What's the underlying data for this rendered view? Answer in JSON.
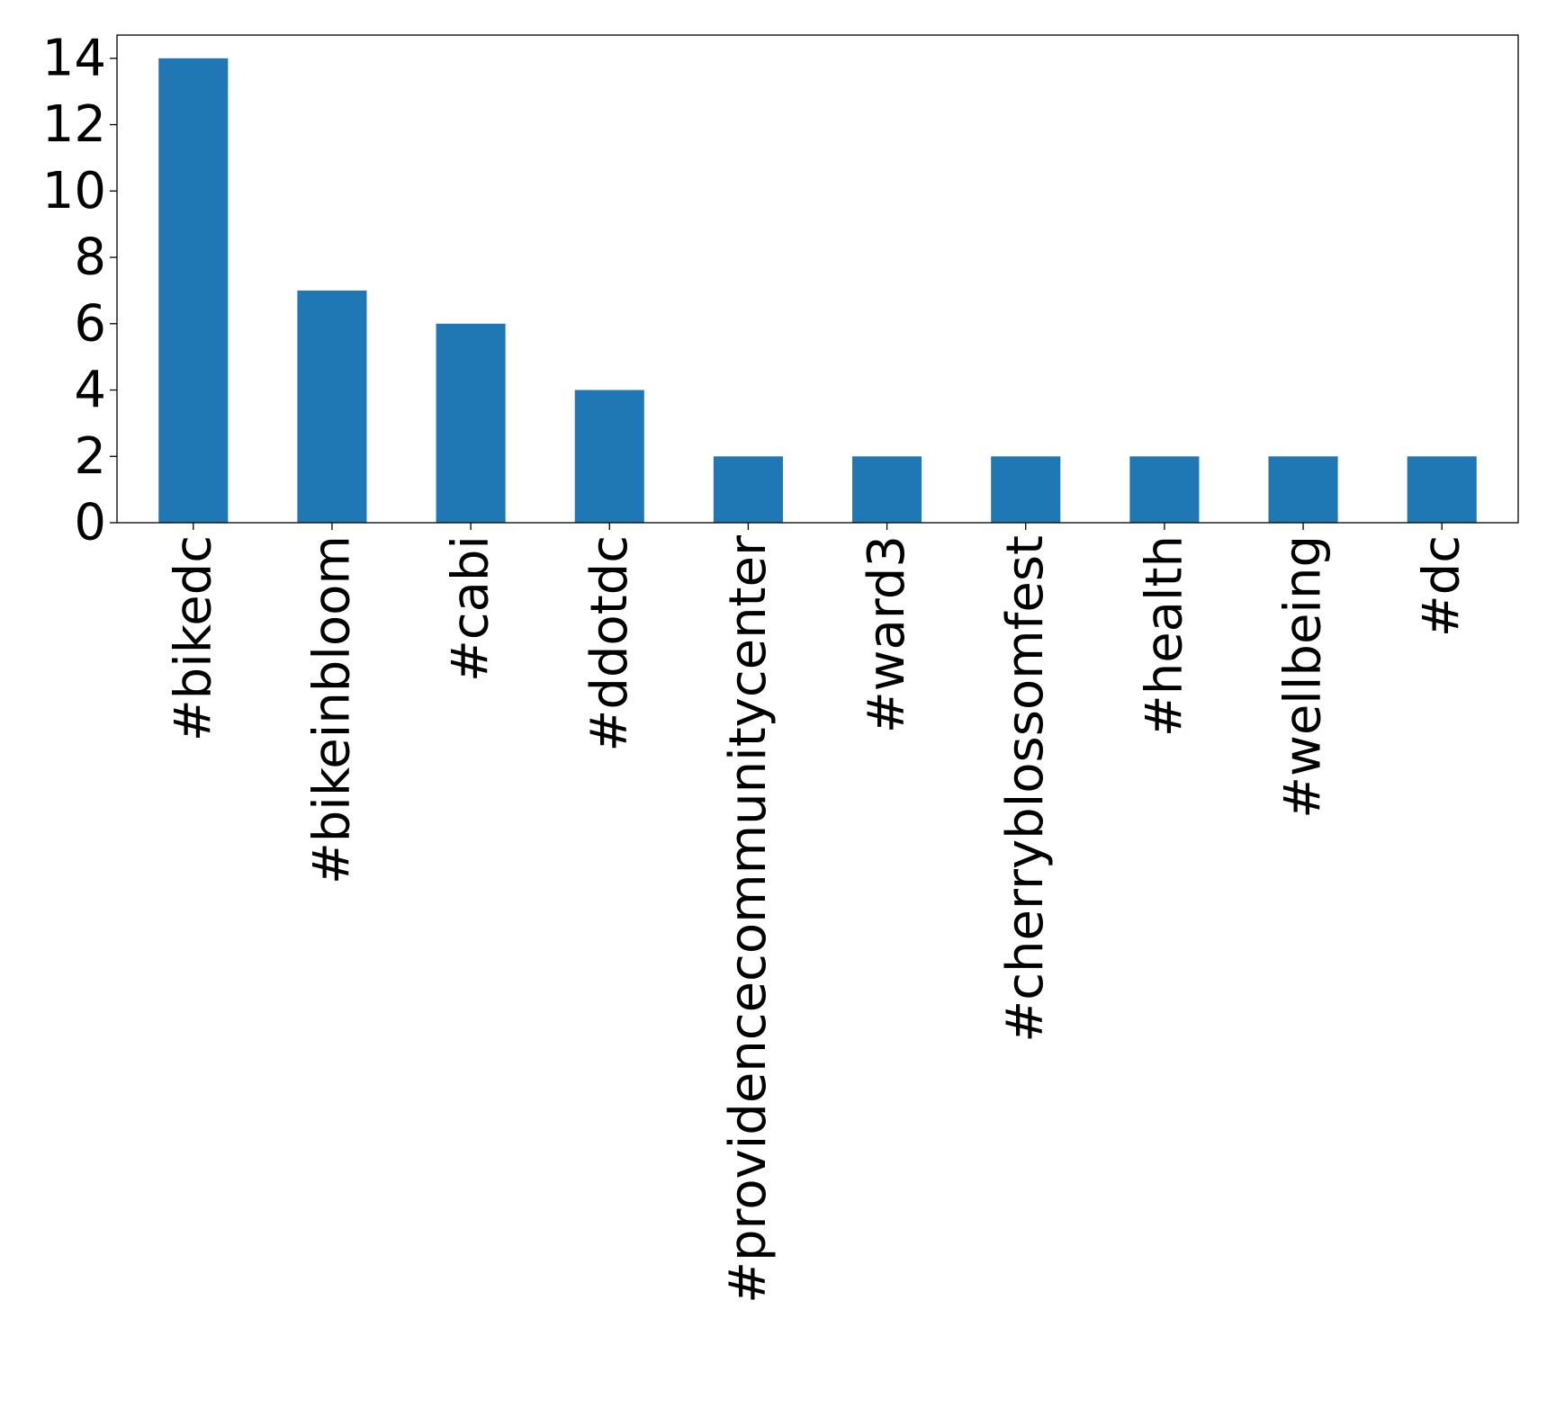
{
  "chart_data": {
    "type": "bar",
    "title": "",
    "xlabel": "",
    "ylabel": "",
    "categories": [
      "#bikedc",
      "#bikeinbloom",
      "#cabi",
      "#ddotdc",
      "#providencecommunitycenter",
      "#ward3",
      "#cherryblossomfest",
      "#health",
      "#wellbeing",
      "#dc"
    ],
    "values": [
      14,
      7,
      6,
      4,
      2,
      2,
      2,
      2,
      2,
      2
    ],
    "ylim": [
      0,
      14.7
    ],
    "yticks": [
      0,
      2,
      4,
      6,
      8,
      10,
      12,
      14
    ],
    "grid": false,
    "legend": "none",
    "bar_color": "#1f77b4"
  }
}
